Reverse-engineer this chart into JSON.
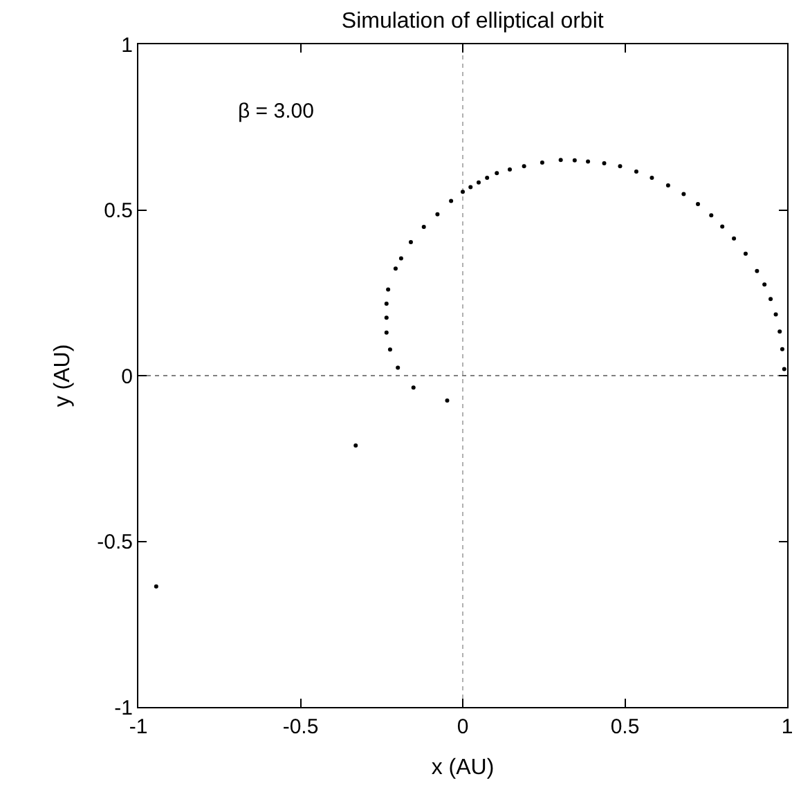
{
  "chart_data": {
    "type": "scatter",
    "title": "Simulation of elliptical orbit",
    "xlabel": "x (AU)",
    "ylabel": "y (AU)",
    "annotations": [
      "β = 3.00"
    ],
    "series": [
      {
        "color": "#000000",
        "x": [
          0.991,
          0.985,
          0.977,
          0.965,
          0.949,
          0.93,
          0.907,
          0.872,
          0.836,
          0.8,
          0.766,
          0.725,
          0.681,
          0.633,
          0.583,
          0.535,
          0.485,
          0.436,
          0.386,
          0.345,
          0.302,
          0.245,
          0.189,
          0.145,
          0.105,
          0.075,
          0.049,
          0.024,
          0.0,
          -0.036,
          -0.078,
          -0.12,
          -0.16,
          -0.19,
          -0.207,
          -0.23,
          -0.235,
          -0.235,
          -0.235,
          -0.224,
          -0.2,
          -0.152,
          -0.048,
          -0.33,
          -0.945
        ],
        "values": [
          0.02,
          0.08,
          0.133,
          0.185,
          0.231,
          0.275,
          0.316,
          0.368,
          0.414,
          0.45,
          0.484,
          0.518,
          0.548,
          0.574,
          0.597,
          0.616,
          0.632,
          0.641,
          0.646,
          0.65,
          0.651,
          0.643,
          0.632,
          0.622,
          0.611,
          0.597,
          0.583,
          0.569,
          0.555,
          0.527,
          0.487,
          0.449,
          0.403,
          0.354,
          0.323,
          0.26,
          0.217,
          0.175,
          0.13,
          0.079,
          0.024,
          -0.036,
          -0.075,
          -0.211,
          -0.636
        ]
      }
    ],
    "xlim": [
      -1,
      1
    ],
    "ylim": [
      -1,
      1
    ],
    "xticks": [
      -1,
      -0.5,
      0,
      0.5,
      1
    ],
    "yticks": [
      -1,
      -0.5,
      0,
      0.5,
      1
    ],
    "ref_lines": [
      {
        "axis": "x",
        "value": 0,
        "color": "#b0b0b0",
        "line_style": "dotted"
      },
      {
        "axis": "y",
        "value": 0,
        "color": "#808080",
        "line_style": "dotted"
      }
    ],
    "marker": "circle",
    "grid": false
  }
}
